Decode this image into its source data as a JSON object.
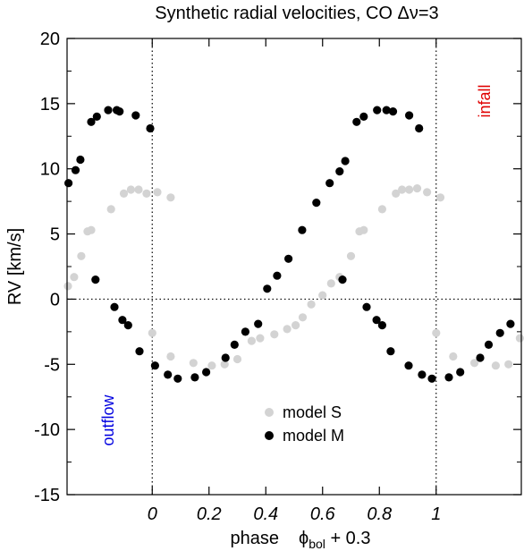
{
  "chart_data": {
    "type": "scatter",
    "title": "Synthetic radial velocities, CO Δν=3",
    "xlabel": {
      "prefix": "phase",
      "symbol": "ϕ",
      "subscript": "bol",
      "suffix": " + 0.3"
    },
    "ylabel": "RV   [km/s]",
    "xlim": [
      -0.3,
      1.3
    ],
    "ylim": [
      -15,
      20
    ],
    "x_ticks": [
      0,
      0.2,
      0.4,
      0.6,
      0.8,
      1
    ],
    "x_tick_labels": [
      "0",
      "0.2",
      "0.4",
      "0.6",
      "0.8",
      "1"
    ],
    "y_ticks": [
      -15,
      -10,
      -5,
      0,
      5,
      10,
      15,
      20
    ],
    "y_tick_labels": [
      "-15",
      "-10",
      "-5",
      "0",
      "5",
      "10",
      "15",
      "20"
    ],
    "reference_lines": {
      "y0": 0,
      "x_vertical": [
        0,
        1
      ],
      "style": "dotted"
    },
    "legend_position": "lower-center",
    "annotations": [
      {
        "text": "infall",
        "color": "#e00000",
        "position": "top-right",
        "rotation": "vertical"
      },
      {
        "text": "outflow",
        "color": "#0000e0",
        "position": "bottom-left",
        "rotation": "vertical"
      }
    ],
    "series": [
      {
        "name": "model S",
        "color": "#d3d3d3",
        "points": [
          [
            -0.297,
            1.0
          ],
          [
            -0.275,
            1.7
          ],
          [
            -0.25,
            3.3
          ],
          [
            -0.228,
            5.2
          ],
          [
            -0.215,
            5.3
          ],
          [
            -0.145,
            6.9
          ],
          [
            -0.1,
            8.1
          ],
          [
            -0.075,
            8.4
          ],
          [
            -0.048,
            8.4
          ],
          [
            -0.02,
            8.1
          ],
          [
            0.018,
            8.2
          ],
          [
            0.065,
            7.8
          ],
          [
            0.0,
            -2.6
          ],
          [
            0.065,
            -4.4
          ],
          [
            0.145,
            -4.9
          ],
          [
            0.21,
            -5.1
          ],
          [
            0.255,
            -5.0
          ],
          [
            0.3,
            -4.6
          ],
          [
            0.35,
            -3.2
          ],
          [
            0.38,
            -3.0
          ],
          [
            0.43,
            -2.7
          ],
          [
            0.475,
            -2.3
          ],
          [
            0.505,
            -2.0
          ],
          [
            0.53,
            -1.4
          ],
          [
            0.56,
            -0.4
          ],
          [
            0.6,
            0.3
          ],
          [
            0.63,
            1.2
          ],
          [
            0.66,
            1.7
          ],
          [
            0.7,
            3.3
          ],
          [
            0.73,
            5.2
          ],
          [
            0.745,
            5.3
          ],
          [
            0.81,
            6.9
          ],
          [
            0.858,
            8.1
          ],
          [
            0.88,
            8.4
          ],
          [
            0.905,
            8.4
          ],
          [
            0.933,
            8.5
          ],
          [
            0.968,
            8.2
          ],
          [
            1.015,
            7.8
          ],
          [
            1.0,
            -2.6
          ],
          [
            1.06,
            -4.4
          ],
          [
            1.135,
            -4.9
          ],
          [
            1.21,
            -5.1
          ],
          [
            1.255,
            -5.0
          ],
          [
            1.295,
            -3.0
          ]
        ]
      },
      {
        "name": "model M",
        "color": "#000000",
        "points": [
          [
            -0.295,
            8.9
          ],
          [
            -0.27,
            9.9
          ],
          [
            -0.253,
            10.7
          ],
          [
            -0.215,
            13.6
          ],
          [
            -0.195,
            14.0
          ],
          [
            -0.155,
            14.5
          ],
          [
            -0.125,
            14.5
          ],
          [
            -0.115,
            14.4
          ],
          [
            -0.058,
            14.1
          ],
          [
            -0.007,
            13.1
          ],
          [
            -0.2,
            1.5
          ],
          [
            -0.133,
            -0.6
          ],
          [
            -0.105,
            -1.6
          ],
          [
            -0.085,
            -2.0
          ],
          [
            -0.045,
            -4.0
          ],
          [
            0.01,
            -5.1
          ],
          [
            0.055,
            -5.8
          ],
          [
            0.09,
            -6.1
          ],
          [
            0.15,
            -6.0
          ],
          [
            0.19,
            -5.6
          ],
          [
            0.258,
            -4.5
          ],
          [
            0.29,
            -3.5
          ],
          [
            0.328,
            -2.5
          ],
          [
            0.373,
            -1.9
          ],
          [
            0.405,
            0.8
          ],
          [
            0.44,
            1.8
          ],
          [
            0.48,
            3.1
          ],
          [
            0.528,
            5.3
          ],
          [
            0.578,
            7.4
          ],
          [
            0.625,
            8.9
          ],
          [
            0.66,
            9.8
          ],
          [
            0.68,
            10.6
          ],
          [
            0.72,
            13.6
          ],
          [
            0.745,
            14.0
          ],
          [
            0.792,
            14.5
          ],
          [
            0.825,
            14.5
          ],
          [
            0.848,
            14.4
          ],
          [
            0.905,
            14.1
          ],
          [
            0.94,
            13.1
          ],
          [
            0.67,
            1.5
          ],
          [
            0.755,
            -0.6
          ],
          [
            0.79,
            -1.6
          ],
          [
            0.81,
            -2.0
          ],
          [
            0.84,
            -4.0
          ],
          [
            0.903,
            -5.1
          ],
          [
            0.95,
            -5.8
          ],
          [
            0.985,
            -6.1
          ],
          [
            1.045,
            -6.0
          ],
          [
            1.085,
            -5.6
          ],
          [
            1.155,
            -4.5
          ],
          [
            1.185,
            -3.5
          ],
          [
            1.225,
            -2.6
          ],
          [
            1.262,
            -1.9
          ]
        ]
      }
    ]
  }
}
